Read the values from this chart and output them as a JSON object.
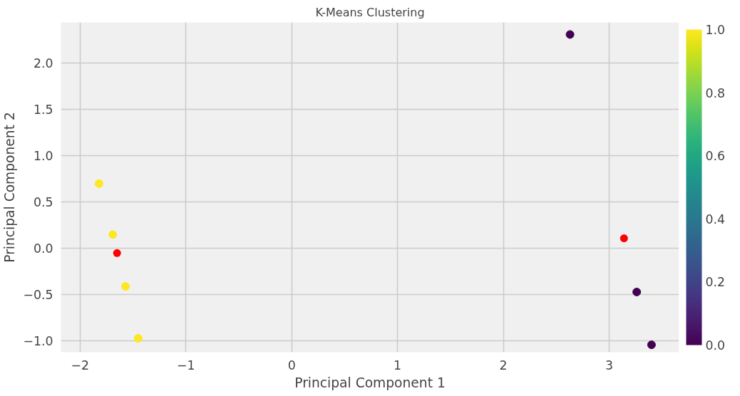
{
  "chart_data": {
    "type": "scatter",
    "title": "K-Means Clustering",
    "xlabel": "Principal Component 1",
    "ylabel": "Principal Component 2",
    "series": [
      {
        "x": [
          2.63,
          -1.82,
          -1.69,
          -1.57,
          -1.45,
          3.26,
          3.4
        ],
        "values": [
          2.31,
          0.7,
          0.15,
          -0.41,
          -0.97,
          -0.47,
          -1.04
        ],
        "cvalues": [
          0,
          1,
          1,
          1,
          1,
          0,
          0
        ],
        "colors": [
          "#440154",
          "#fde725",
          "#fde725",
          "#fde725",
          "#fde725",
          "#440154",
          "#440154"
        ]
      },
      {
        "x": [
          -1.65,
          3.14
        ],
        "values": [
          -0.05,
          0.11
        ],
        "color": "#ff0000"
      }
    ],
    "xlim": [
      -2.18,
      3.66
    ],
    "ylim": [
      -1.12,
      2.44
    ],
    "xticks": [
      {
        "value": -2,
        "label": "−2"
      },
      {
        "value": -1,
        "label": "−1"
      },
      0,
      1,
      2,
      3
    ],
    "yticks": [
      {
        "value": -1,
        "label": "−1.0"
      },
      {
        "value": -0.5,
        "label": "−0.5"
      },
      {
        "value": 0,
        "label": "0.0"
      },
      {
        "value": 0.5,
        "label": "0.5"
      },
      {
        "value": 1,
        "label": "1.0"
      },
      {
        "value": 1.5,
        "label": "1.5"
      },
      {
        "value": 2,
        "label": "2.0"
      }
    ],
    "clim": [
      0,
      1
    ],
    "cticks": [
      {
        "value": 0,
        "label": "0.0"
      },
      {
        "value": 0.2,
        "label": "0.2"
      },
      {
        "value": 0.4,
        "label": "0.4"
      },
      {
        "value": 0.6,
        "label": "0.6"
      },
      {
        "value": 0.8,
        "label": "0.8"
      },
      {
        "value": 1,
        "label": "1.0"
      }
    ],
    "grid": true,
    "marker": "circle"
  }
}
